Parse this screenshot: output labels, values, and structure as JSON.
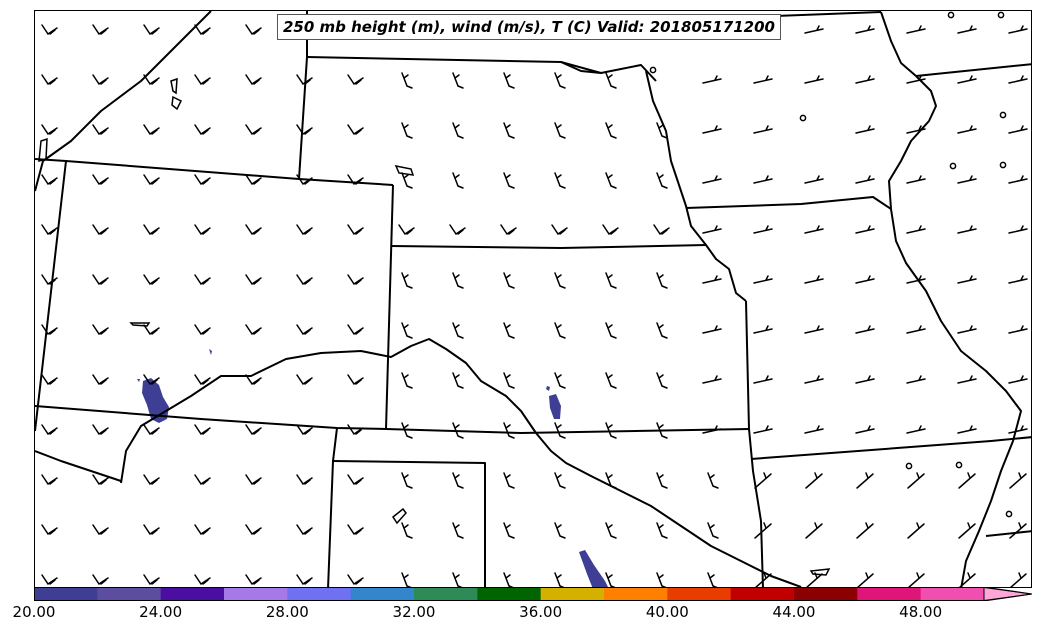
{
  "title": "250 mb height (m), wind (m/s), T (C) Valid: 201805171200",
  "colorbar": {
    "colors": [
      "#3e3f94",
      "#5d4d9e",
      "#4a0fa0",
      "#a678e8",
      "#7070f2",
      "#3385cc",
      "#2e8b57",
      "#006400",
      "#d4b000",
      "#ff8000",
      "#e83c00",
      "#c00000",
      "#8b0000",
      "#e0157a",
      "#f04fb0",
      "#ffa6d9"
    ],
    "ticks": [
      "20.00",
      "24.00",
      "28.00",
      "32.00",
      "36.00",
      "40.00",
      "44.00",
      "48.00"
    ]
  }
}
